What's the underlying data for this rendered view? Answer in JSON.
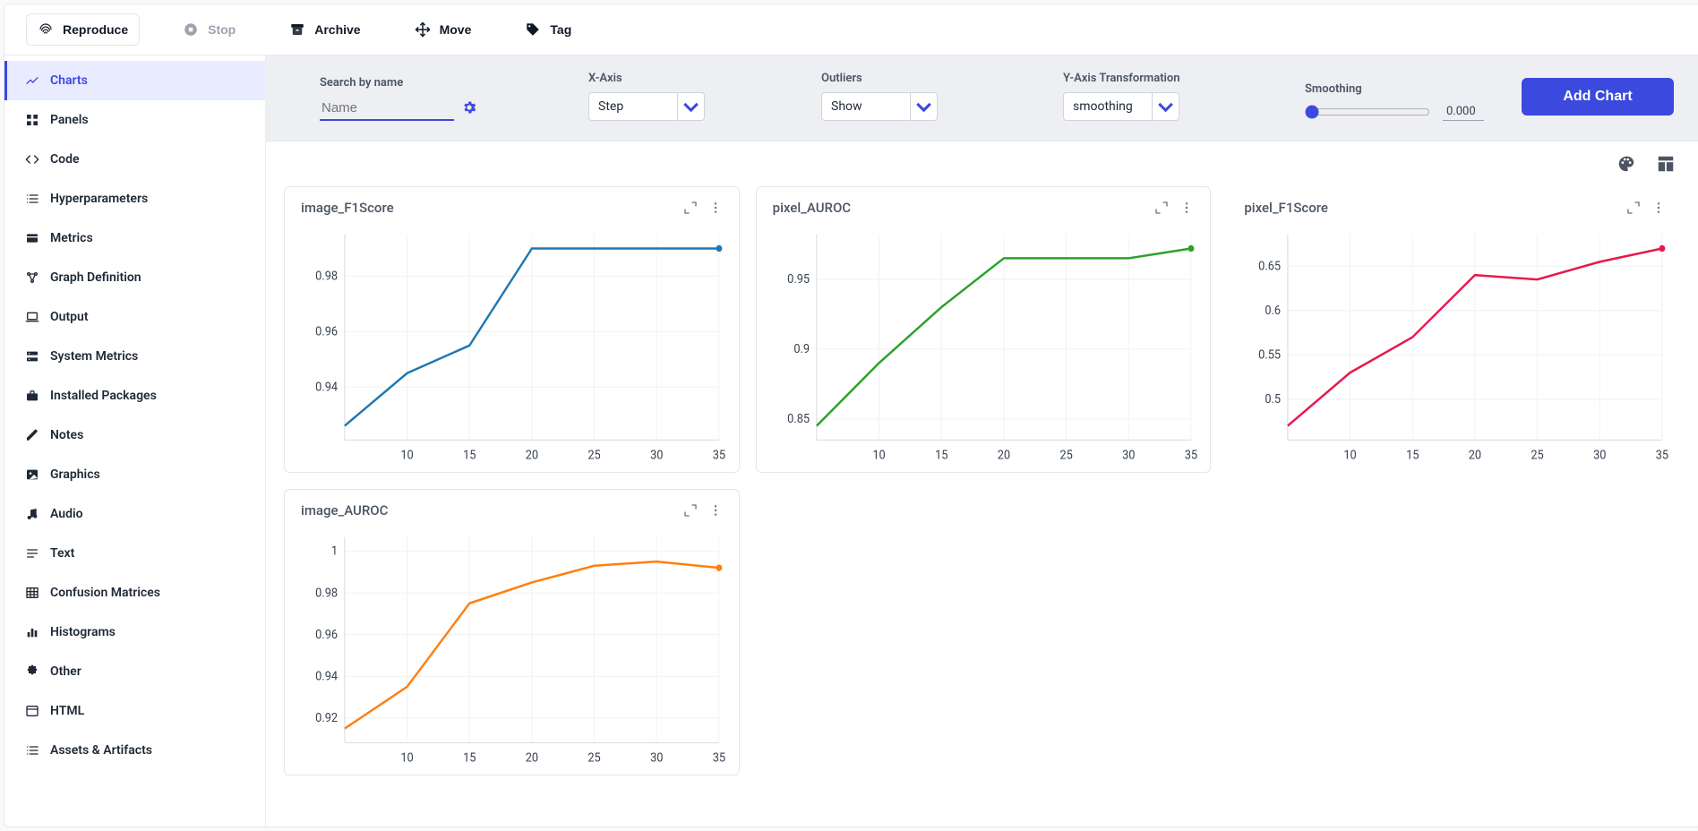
{
  "toolbar": [
    {
      "name": "reproduce-button",
      "label": "Reproduce",
      "icon": "fingerprint",
      "variant": "primary"
    },
    {
      "name": "stop-button",
      "label": "Stop",
      "icon": "stop",
      "variant": "disabled"
    },
    {
      "name": "archive-button",
      "label": "Archive",
      "icon": "archive",
      "variant": ""
    },
    {
      "name": "move-button",
      "label": "Move",
      "icon": "move",
      "variant": ""
    },
    {
      "name": "tag-button",
      "label": "Tag",
      "icon": "tag",
      "variant": ""
    }
  ],
  "sidebar": [
    {
      "name": "sidebar-item-charts",
      "label": "Charts",
      "icon": "chart-line",
      "active": true
    },
    {
      "name": "sidebar-item-panels",
      "label": "Panels",
      "icon": "grid",
      "active": false
    },
    {
      "name": "sidebar-item-code",
      "label": "Code",
      "icon": "code",
      "active": false
    },
    {
      "name": "sidebar-item-hyperparameters",
      "label": "Hyperparameters",
      "icon": "list",
      "active": false
    },
    {
      "name": "sidebar-item-metrics",
      "label": "Metrics",
      "icon": "card",
      "active": false
    },
    {
      "name": "sidebar-item-graph-definition",
      "label": "Graph Definition",
      "icon": "graph",
      "active": false
    },
    {
      "name": "sidebar-item-output",
      "label": "Output",
      "icon": "laptop",
      "active": false
    },
    {
      "name": "sidebar-item-system-metrics",
      "label": "System Metrics",
      "icon": "server",
      "active": false
    },
    {
      "name": "sidebar-item-installed-packages",
      "label": "Installed Packages",
      "icon": "briefcase",
      "active": false
    },
    {
      "name": "sidebar-item-notes",
      "label": "Notes",
      "icon": "pencil",
      "active": false
    },
    {
      "name": "sidebar-item-graphics",
      "label": "Graphics",
      "icon": "image",
      "active": false
    },
    {
      "name": "sidebar-item-audio",
      "label": "Audio",
      "icon": "music",
      "active": false
    },
    {
      "name": "sidebar-item-text",
      "label": "Text",
      "icon": "text",
      "active": false
    },
    {
      "name": "sidebar-item-confusion-matrices",
      "label": "Confusion Matrices",
      "icon": "table",
      "active": false
    },
    {
      "name": "sidebar-item-histograms",
      "label": "Histograms",
      "icon": "bars",
      "active": false
    },
    {
      "name": "sidebar-item-other",
      "label": "Other",
      "icon": "puzzle",
      "active": false
    },
    {
      "name": "sidebar-item-html",
      "label": "HTML",
      "icon": "window",
      "active": false
    },
    {
      "name": "sidebar-item-assets-artifacts",
      "label": "Assets & Artifacts",
      "icon": "list",
      "active": false
    }
  ],
  "controls": {
    "search": {
      "label": "Search by name",
      "placeholder": "Name"
    },
    "xaxis": {
      "label": "X-Axis",
      "value": "Step"
    },
    "outliers": {
      "label": "Outliers",
      "value": "Show"
    },
    "ytransform": {
      "label": "Y-Axis Transformation",
      "value": "smoothing"
    },
    "smoothing": {
      "label": "Smoothing",
      "value": "0.000"
    },
    "add_chart_label": "Add Chart"
  },
  "chart_style": {
    "grid_color": "#f1f2f4",
    "border_color": "#d7dadf",
    "background": "#ffffff",
    "tick_fontsize": 13,
    "tick_color": "#374151",
    "title_fontsize": 15,
    "title_color": "#4b5563",
    "line_width": 2.4,
    "marker_radius": 3.5
  },
  "charts": [
    {
      "name": "chart-image-f1score",
      "title": "image_F1Score",
      "border": true,
      "type": "line",
      "color": "#1f77b4",
      "x": [
        5,
        10,
        15,
        20,
        25,
        30,
        35
      ],
      "y": [
        0.926,
        0.945,
        0.955,
        0.99,
        0.99,
        0.99,
        0.99
      ],
      "xticks": [
        10,
        15,
        20,
        25,
        30,
        35
      ],
      "yticks": [
        0.94,
        0.96,
        0.98
      ],
      "end_marker": true
    },
    {
      "name": "chart-pixel-auroc",
      "title": "pixel_AUROC",
      "border": true,
      "type": "line",
      "color": "#2ca02c",
      "x": [
        5,
        10,
        15,
        20,
        25,
        30,
        35
      ],
      "y": [
        0.845,
        0.89,
        0.93,
        0.965,
        0.965,
        0.965,
        0.972
      ],
      "xticks": [
        10,
        15,
        20,
        25,
        30,
        35
      ],
      "yticks": [
        0.85,
        0.9,
        0.95
      ],
      "end_marker": true
    },
    {
      "name": "chart-pixel-f1score",
      "title": "pixel_F1Score",
      "border": false,
      "type": "line",
      "color": "#e6194b",
      "x": [
        5,
        10,
        15,
        20,
        25,
        30,
        35
      ],
      "y": [
        0.47,
        0.53,
        0.57,
        0.64,
        0.635,
        0.655,
        0.67
      ],
      "xticks": [
        10,
        15,
        20,
        25,
        30,
        35
      ],
      "yticks": [
        0.5,
        0.55,
        0.6,
        0.65
      ],
      "end_marker": true
    },
    {
      "name": "chart-image-auroc",
      "title": "image_AUROC",
      "border": true,
      "type": "line",
      "color": "#ff7f0e",
      "x": [
        5,
        10,
        15,
        20,
        25,
        30,
        35
      ],
      "y": [
        0.915,
        0.935,
        0.975,
        0.985,
        0.993,
        0.995,
        0.992
      ],
      "xticks": [
        10,
        15,
        20,
        25,
        30,
        35
      ],
      "yticks": [
        0.92,
        0.94,
        0.96,
        0.98,
        1
      ],
      "end_marker": true
    }
  ]
}
